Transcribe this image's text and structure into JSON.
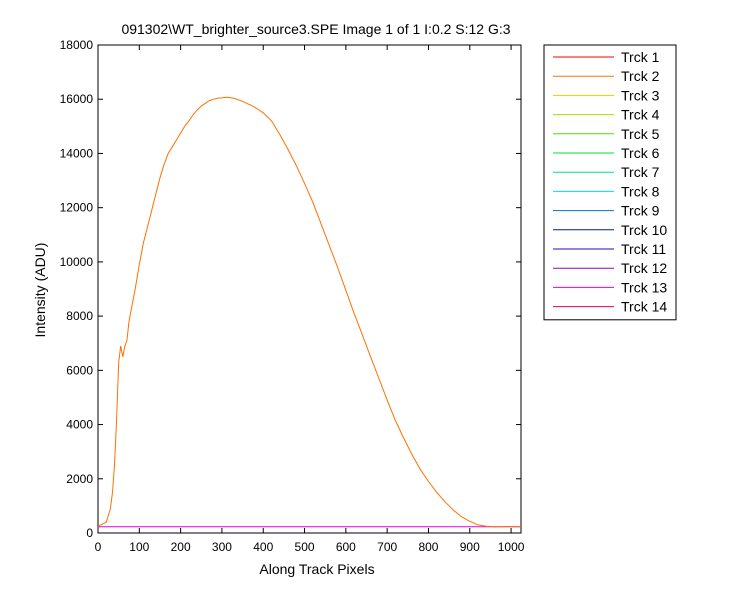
{
  "chart_data": {
    "type": "line",
    "title": "091302\\WT_brighter_source3.SPE  Image 1 of 1  I:0.2  S:12  G:3",
    "xlabel": "Along Track Pixels",
    "ylabel": "Intensity (ADU)",
    "xlim": [
      0,
      1024
    ],
    "ylim": [
      0,
      18000
    ],
    "xticks": [
      0,
      100,
      200,
      300,
      400,
      500,
      600,
      700,
      800,
      900,
      1000
    ],
    "yticks": [
      0,
      2000,
      4000,
      6000,
      8000,
      10000,
      12000,
      14000,
      16000,
      18000
    ],
    "grid": false,
    "legend_position": "outside-right",
    "series": [
      {
        "name": "Trck 1",
        "color": "#ff0000",
        "flat": 230,
        "hidden_in_plot": true
      },
      {
        "name": "Trck 2",
        "color": "#ff7000",
        "x": [
          0,
          10,
          20,
          30,
          35,
          40,
          45,
          50,
          55,
          60,
          65,
          70,
          75,
          80,
          90,
          100,
          110,
          120,
          130,
          140,
          150,
          160,
          170,
          180,
          190,
          200,
          210,
          220,
          230,
          240,
          250,
          260,
          270,
          280,
          290,
          300,
          310,
          320,
          330,
          340,
          350,
          360,
          370,
          380,
          390,
          400,
          420,
          440,
          460,
          480,
          500,
          520,
          540,
          560,
          580,
          600,
          620,
          640,
          660,
          680,
          700,
          720,
          740,
          760,
          780,
          800,
          820,
          840,
          860,
          880,
          900,
          920,
          940,
          960,
          980,
          1000,
          1010,
          1024
        ],
        "y": [
          250,
          320,
          400,
          900,
          1500,
          2500,
          4200,
          6300,
          6900,
          6500,
          6900,
          7100,
          7800,
          8200,
          9000,
          9900,
          10700,
          11300,
          11900,
          12500,
          13100,
          13600,
          14000,
          14250,
          14500,
          14750,
          15000,
          15200,
          15420,
          15600,
          15750,
          15850,
          15950,
          16000,
          16040,
          16050,
          16070,
          16060,
          16030,
          15980,
          15920,
          15850,
          15780,
          15700,
          15600,
          15500,
          15200,
          14700,
          14150,
          13550,
          12900,
          12200,
          11400,
          10600,
          9800,
          8950,
          8100,
          7300,
          6500,
          5700,
          4900,
          4150,
          3500,
          2900,
          2350,
          1900,
          1500,
          1150,
          850,
          600,
          430,
          300,
          250,
          230,
          230,
          240,
          235,
          230
        ]
      },
      {
        "name": "Trck 3",
        "color": "#e0d000",
        "flat": 230,
        "hidden_in_plot": true
      },
      {
        "name": "Trck 4",
        "color": "#a0e000",
        "flat": 230,
        "hidden_in_plot": true
      },
      {
        "name": "Trck 5",
        "color": "#40e000",
        "flat": 230,
        "hidden_in_plot": true
      },
      {
        "name": "Trck 6",
        "color": "#00e020",
        "flat": 230,
        "hidden_in_plot": true
      },
      {
        "name": "Trck 7",
        "color": "#00e080",
        "flat": 230,
        "hidden_in_plot": true
      },
      {
        "name": "Trck 8",
        "color": "#00e0e0",
        "flat": 230,
        "hidden_in_plot": true
      },
      {
        "name": "Trck 9",
        "color": "#0070c0",
        "flat": 230,
        "hidden_in_plot": true
      },
      {
        "name": "Trck 10",
        "color": "#002070",
        "flat": 230,
        "hidden_in_plot": true
      },
      {
        "name": "Trck 11",
        "color": "#3000c0",
        "flat": 230,
        "hidden_in_plot": true
      },
      {
        "name": "Trck 12",
        "color": "#9000d0",
        "flat": 230,
        "hidden_in_plot": true
      },
      {
        "name": "Trck 13",
        "color": "#e000e0",
        "flat": 230,
        "hidden_in_plot": false
      },
      {
        "name": "Trck 14",
        "color": "#e00060",
        "flat": 230,
        "hidden_in_plot": true
      }
    ]
  }
}
